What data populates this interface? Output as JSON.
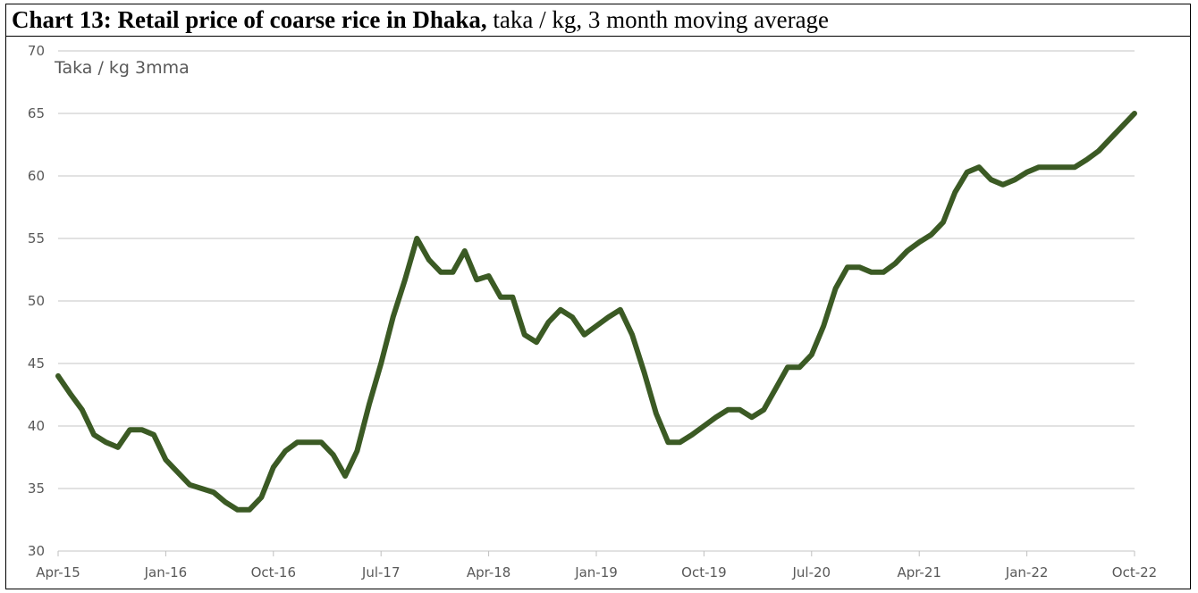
{
  "chart_data": {
    "type": "line",
    "title_bold": "Chart 13: Retail price of coarse rice in Dhaka,",
    "title_rest": " taka / kg, 3 month moving average",
    "unit_label": "Taka / kg 3mma",
    "ylim": [
      30,
      70
    ],
    "yticks": [
      30,
      35,
      40,
      45,
      50,
      55,
      60,
      65,
      70
    ],
    "x_start": "Apr-15",
    "x_end": "Oct-22",
    "xtick_labels": [
      "Apr-15",
      "Jan-16",
      "Oct-16",
      "Jul-17",
      "Apr-18",
      "Jan-19",
      "Oct-19",
      "Jul-20",
      "Apr-21",
      "Jan-22",
      "Oct-22"
    ],
    "grid": "horizontal",
    "line_color": "#3b5a24",
    "series": [
      {
        "values": [
          44,
          42.6,
          41.3,
          39.3,
          38.7,
          38.3,
          39.7,
          39.7,
          39.3,
          37.3,
          36.3,
          35.3,
          35,
          34.7,
          33.9,
          33.3,
          33.3,
          34.3,
          36.7,
          38,
          38.7,
          38.7,
          38.7,
          37.7,
          36,
          38,
          41.7,
          45,
          48.7,
          51.7,
          55,
          53.3,
          52.3,
          52.3,
          54,
          51.7,
          52,
          50.3,
          50.3,
          47.3,
          46.7,
          48.3,
          49.3,
          48.7,
          47.3,
          48,
          48.7,
          49.3,
          47.3,
          44.3,
          41,
          38.7,
          38.7,
          39.3,
          40,
          40.7,
          41.3,
          41.3,
          40.7,
          41.3,
          43,
          44.7,
          44.7,
          45.7,
          48,
          51,
          52.7,
          52.7,
          52.3,
          52.3,
          53,
          54,
          54.7,
          55.3,
          56.3,
          58.7,
          60.3,
          60.7,
          59.7,
          59.3,
          59.7,
          60.3,
          60.7,
          60.7,
          60.7,
          60.7,
          61.3,
          62,
          63,
          64,
          65
        ]
      }
    ]
  }
}
